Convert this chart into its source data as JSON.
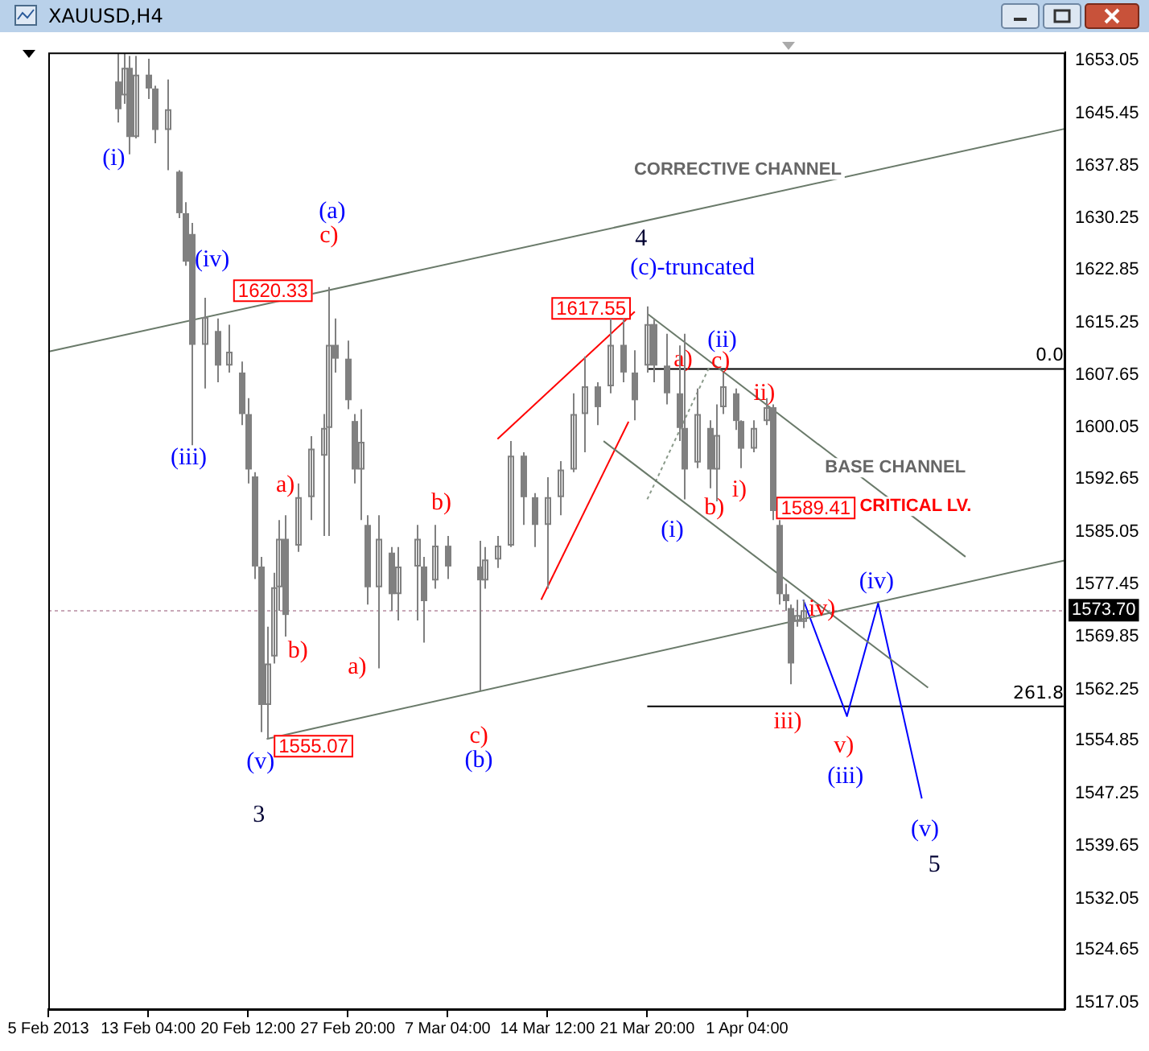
{
  "chart_data": {
    "type": "candlestick",
    "title": "XAUUSD,H4",
    "color": "#808080",
    "categories": [
      "5 Feb 2013",
      null,
      null,
      null,
      null,
      null,
      null,
      null,
      null,
      null,
      null,
      null,
      null,
      null,
      null,
      null,
      "13 Feb 04:00",
      null,
      null,
      null,
      null,
      null,
      null,
      null,
      null,
      null,
      null,
      null,
      null,
      null,
      null,
      null,
      "20 Feb 12:00",
      null,
      null,
      null,
      null,
      null,
      null,
      null,
      null,
      null,
      null,
      null,
      null,
      null,
      null,
      null,
      "27 Feb 20:00",
      null,
      null,
      null,
      null,
      null,
      null,
      null,
      null,
      null,
      null,
      null,
      null,
      null,
      null,
      null,
      "7 Mar 04:00",
      null,
      null,
      null,
      null,
      null,
      null,
      null,
      null,
      null,
      null,
      null,
      null,
      null,
      null,
      null,
      "14 Mar 12:00",
      null,
      null,
      null,
      null,
      null,
      null,
      null,
      null,
      null,
      null,
      null,
      null,
      null,
      null,
      null,
      "21 Mar 20:00",
      null,
      null,
      null,
      null,
      null,
      null,
      null,
      null,
      null,
      null,
      null,
      null,
      null,
      null,
      null,
      "1 Apr 04:00",
      null,
      null,
      null,
      null,
      null,
      null,
      null,
      null,
      null,
      null,
      null,
      null,
      null,
      null,
      null,
      null,
      null,
      null,
      null,
      null,
      null,
      null,
      null,
      null,
      null,
      null,
      null,
      null,
      null,
      null,
      null,
      null,
      null,
      null,
      null,
      null,
      null,
      null,
      null,
      null,
      null,
      null,
      null,
      null,
      null,
      null,
      null,
      null,
      null,
      null,
      null
    ],
    "ohlc": [
      null,
      null,
      null,
      null,
      null,
      null,
      null,
      null,
      null,
      null,
      null,
      [
        1650,
        1654,
        1644.1,
        1646
      ],
      [
        1648,
        1654,
        1646.8,
        1652
      ],
      [
        1652,
        1653.7,
        1639.5,
        1642
      ],
      [
        1642,
        1653.7,
        1641.8,
        1651
      ],
      null,
      [
        1651,
        1653.3,
        1647.5,
        1649
      ],
      [
        1649,
        1649.4,
        1641.1,
        1643
      ],
      null,
      [
        1643,
        1650.3,
        1637.2,
        1646
      ],
      null,
      [
        1637,
        1637.2,
        1630.3,
        1631
      ],
      [
        1631,
        1632.6,
        1623.4,
        1624
      ],
      [
        1628,
        1629.6,
        1597.5,
        1612
      ],
      null,
      [
        1612,
        1618.8,
        1605.7,
        1616
      ],
      null,
      [
        1614,
        1615.8,
        1606.6,
        1609
      ],
      null,
      [
        1609,
        1614.9,
        1608,
        1611
      ],
      null,
      [
        1608,
        1609.6,
        1600.4,
        1602
      ],
      [
        1602,
        1604.3,
        1592,
        1594
      ],
      [
        1593,
        1593.6,
        1578.2,
        1580
      ],
      [
        1580,
        1581.4,
        1556.1,
        1560
      ],
      [
        1560,
        1571.3,
        1555.07,
        1566
      ],
      [
        1567,
        1579.1,
        1566,
        1577
      ],
      [
        1577,
        1586.7,
        1573.6,
        1584
      ],
      [
        1584,
        1587.4,
        1569.9,
        1573
      ],
      null,
      [
        1583,
        1592,
        1582.1,
        1590
      ],
      null,
      [
        1590,
        1598.8,
        1586.7,
        1597
      ],
      null,
      [
        1596,
        1602,
        1584.4,
        1600
      ],
      [
        1600,
        1620.33,
        1584.4,
        1612
      ],
      [
        1612,
        1615.8,
        1608,
        1610
      ],
      null,
      [
        1610,
        1612.6,
        1602.7,
        1604
      ],
      [
        1601,
        1602,
        1592,
        1594
      ],
      [
        1594,
        1602.7,
        1586.7,
        1598
      ],
      [
        1586,
        1587.4,
        1574.5,
        1577
      ],
      null,
      [
        1577,
        1587.4,
        1565.3,
        1584
      ],
      null,
      [
        1582,
        1582.8,
        1573.6,
        1576
      ],
      [
        1576,
        1582.8,
        1572.2,
        1580
      ],
      null,
      null,
      [
        1580,
        1586,
        1572.2,
        1584
      ],
      [
        1580,
        1581.4,
        1569,
        1575
      ],
      null,
      [
        1578,
        1586,
        1576.8,
        1583
      ],
      null,
      [
        1583,
        1584.4,
        1578.2,
        1580
      ],
      null,
      null,
      null,
      null,
      [
        1580,
        1583.7,
        1562.1,
        1578
      ],
      [
        1578,
        1582.8,
        1576.8,
        1581
      ],
      null,
      [
        1581,
        1584.4,
        1579.8,
        1583
      ],
      null,
      [
        1583,
        1598.1,
        1582.8,
        1596
      ],
      null,
      [
        1596,
        1596.5,
        1586,
        1590
      ],
      null,
      [
        1590,
        1590.6,
        1582.8,
        1586
      ],
      null,
      [
        1586,
        1592.9,
        1576.8,
        1590
      ],
      null,
      [
        1590,
        1595.2,
        1587.4,
        1594
      ],
      null,
      [
        1594,
        1605,
        1593.6,
        1602
      ],
      null,
      [
        1602,
        1610.3,
        1596.5,
        1606
      ],
      null,
      [
        1606,
        1606.6,
        1600.4,
        1603
      ],
      null,
      [
        1606,
        1615.8,
        1605,
        1612
      ],
      null,
      [
        1612,
        1615.8,
        1606.6,
        1608
      ],
      null,
      [
        1608,
        1611.2,
        1601.1,
        1604
      ],
      null,
      [
        1609,
        1617.55,
        1608,
        1615
      ],
      [
        1615,
        1615.8,
        1606.6,
        1609
      ],
      null,
      [
        1609,
        1613.6,
        1603.4,
        1605
      ],
      null,
      [
        1605,
        1611.9,
        1598.1,
        1600
      ],
      [
        1600,
        1613.6,
        1589.7,
        1594
      ],
      null,
      [
        1595,
        1605.7,
        1594.2,
        1602
      ],
      null,
      [
        1600,
        1601.1,
        1591.3,
        1594
      ],
      [
        1594,
        1603.4,
        1589.41,
        1599
      ],
      [
        1603,
        1608,
        1602,
        1606
      ],
      null,
      [
        1605,
        1605.7,
        1599.7,
        1601
      ],
      [
        1601,
        1601.1,
        1594.2,
        1597
      ],
      null,
      [
        1597,
        1601.1,
        1596.5,
        1600
      ],
      null,
      [
        1601,
        1604.3,
        1600.4,
        1603
      ],
      [
        1603,
        1603.4,
        1586.7,
        1588
      ],
      [
        1586,
        1586.7,
        1574.5,
        1576
      ],
      [
        1576,
        1577.5,
        1573.6,
        1575
      ],
      [
        1574,
        1574.5,
        1563,
        1566
      ],
      [
        1572,
        1575.2,
        1571.3,
        1573
      ],
      [
        1572,
        1575.2,
        1571.1,
        1573.7
      ],
      null,
      null,
      null,
      null,
      null,
      null,
      null,
      null,
      null,
      null,
      null,
      null,
      null,
      null,
      null,
      null,
      null,
      null,
      null,
      null,
      null,
      null,
      null,
      null,
      null,
      null,
      null,
      null,
      null,
      null,
      null,
      null,
      null,
      null,
      null,
      null,
      null,
      null,
      null,
      null,
      null,
      null
    ],
    "ylim": [
      1516.1,
      1654.2
    ],
    "yticks": [
      1517.05,
      1524.65,
      1532.05,
      1539.65,
      1547.25,
      1554.85,
      1562.25,
      1569.85,
      1577.45,
      1585.05,
      1592.65,
      1600.05,
      1607.65,
      1615.25,
      1622.85,
      1630.25,
      1637.85,
      1645.45,
      1653.05
    ],
    "series": [
      {
        "type": "line",
        "color": "#6a7a6a",
        "values": [
          1611.0,
          null,
          null,
          null,
          null,
          null,
          null,
          null,
          null,
          null,
          null,
          null,
          null,
          null,
          null,
          null,
          null,
          null,
          null,
          null,
          null,
          null,
          null,
          null,
          null,
          null,
          null,
          null,
          null,
          null,
          null,
          null,
          null,
          null,
          null,
          null,
          null,
          null,
          null,
          null,
          null,
          null,
          null,
          null,
          null,
          null,
          null,
          null,
          null,
          null,
          null,
          null,
          null,
          null,
          null,
          null,
          null,
          null,
          null,
          null,
          null,
          null,
          null,
          null,
          null,
          null,
          null,
          null,
          null,
          null,
          null,
          null,
          null,
          null,
          null,
          null,
          null,
          null,
          null,
          null,
          null,
          null,
          null,
          null,
          null,
          null,
          null,
          null,
          null,
          null,
          null,
          null,
          null,
          null,
          null,
          null,
          null,
          null,
          null,
          null,
          null,
          null,
          null,
          null,
          null,
          null,
          null,
          null,
          null,
          null,
          null,
          null,
          null,
          null,
          null,
          null,
          null,
          null,
          null,
          null,
          null,
          null,
          null,
          null,
          null,
          null,
          null,
          null,
          null,
          null,
          null,
          null,
          null,
          null,
          null,
          null,
          null,
          null,
          null,
          null,
          null,
          null,
          null,
          null,
          null,
          null,
          null,
          null,
          null,
          null,
          null,
          null,
          null,
          null,
          null,
          null,
          null,
          null,
          null,
          null,
          null,
          null,
          null,
          1643.2
        ]
      },
      {
        "type": "line",
        "color": "#6a7a6a",
        "values": [
          null,
          null,
          null,
          null,
          null,
          null,
          null,
          null,
          null,
          null,
          null,
          null,
          null,
          null,
          null,
          null,
          null,
          null,
          null,
          null,
          null,
          null,
          null,
          null,
          null,
          null,
          null,
          null,
          null,
          null,
          null,
          null,
          null,
          null,
          null,
          1555.1,
          null,
          null,
          null,
          null,
          null,
          null,
          null,
          null,
          null,
          null,
          null,
          null,
          null,
          null,
          null,
          null,
          null,
          null,
          null,
          null,
          null,
          null,
          null,
          null,
          null,
          null,
          null,
          null,
          null,
          null,
          null,
          null,
          null,
          null,
          null,
          null,
          null,
          null,
          null,
          null,
          null,
          null,
          null,
          null,
          null,
          null,
          null,
          null,
          null,
          null,
          null,
          null,
          null,
          null,
          null,
          null,
          null,
          null,
          null,
          null,
          null,
          null,
          null,
          null,
          null,
          null,
          null,
          null,
          null,
          null,
          null,
          null,
          null,
          null,
          null,
          null,
          null,
          null,
          null,
          null,
          null,
          null,
          null,
          null,
          null,
          null,
          null,
          null,
          null,
          null,
          null,
          null,
          null,
          null,
          null,
          null,
          null,
          null,
          null,
          null,
          null,
          null,
          null,
          null,
          null,
          null,
          null,
          null,
          null,
          null,
          null,
          null,
          null,
          null,
          null,
          null,
          null,
          null,
          null,
          null,
          null,
          null,
          null,
          null,
          null,
          null,
          null,
          1580.9
        ]
      },
      {
        "type": "line",
        "color": "#6a7a6a",
        "values": [
          null,
          null,
          null,
          null,
          null,
          null,
          null,
          null,
          null,
          null,
          null,
          null,
          null,
          null,
          null,
          null,
          null,
          null,
          null,
          null,
          null,
          null,
          null,
          null,
          null,
          null,
          null,
          null,
          null,
          null,
          null,
          null,
          null,
          null,
          null,
          null,
          null,
          null,
          null,
          null,
          null,
          null,
          null,
          null,
          null,
          null,
          null,
          null,
          null,
          null,
          null,
          null,
          null,
          null,
          null,
          null,
          null,
          null,
          null,
          null,
          null,
          null,
          null,
          null,
          null,
          null,
          null,
          null,
          null,
          null,
          null,
          null,
          null,
          null,
          null,
          null,
          null,
          null,
          null,
          null,
          null,
          null,
          null,
          null,
          null,
          null,
          null,
          null,
          null,
          null,
          null,
          null,
          null,
          null,
          null,
          null,
          1616.5,
          null,
          null,
          null,
          null,
          null,
          null,
          null,
          null,
          null,
          null,
          null,
          null,
          null,
          null,
          null,
          null,
          null,
          null,
          null,
          null,
          null,
          null,
          null,
          null,
          null,
          null,
          null,
          null,
          null,
          null,
          null,
          null,
          null,
          null,
          null,
          null,
          null,
          null,
          null,
          null,
          null,
          null,
          null,
          null,
          null,
          null,
          null,
          null,
          null,
          null,
          1581.4,
          null,
          null,
          null,
          null,
          null,
          null,
          null,
          null,
          null,
          null,
          null,
          null,
          null,
          null,
          null,
          null
        ]
      },
      {
        "type": "line",
        "color": "#6a7a6a",
        "values": [
          null,
          null,
          null,
          null,
          null,
          null,
          null,
          null,
          null,
          null,
          null,
          null,
          null,
          null,
          null,
          null,
          null,
          null,
          null,
          null,
          null,
          null,
          null,
          null,
          null,
          null,
          null,
          null,
          null,
          null,
          null,
          null,
          null,
          null,
          null,
          null,
          null,
          null,
          null,
          null,
          null,
          null,
          null,
          null,
          null,
          null,
          null,
          null,
          null,
          null,
          null,
          null,
          null,
          null,
          null,
          null,
          null,
          null,
          null,
          null,
          null,
          null,
          null,
          null,
          null,
          null,
          null,
          null,
          null,
          null,
          null,
          null,
          null,
          null,
          null,
          null,
          null,
          null,
          null,
          null,
          null,
          null,
          null,
          null,
          null,
          null,
          null,
          null,
          null,
          1598.1,
          null,
          null,
          null,
          null,
          null,
          null,
          null,
          null,
          null,
          null,
          null,
          null,
          null,
          null,
          null,
          null,
          null,
          null,
          null,
          null,
          null,
          null,
          null,
          null,
          null,
          null,
          null,
          null,
          null,
          null,
          null,
          null,
          null,
          null,
          null,
          null,
          null,
          null,
          null,
          null,
          null,
          null,
          null,
          null,
          null,
          null,
          null,
          null,
          null,
          null,
          null,
          1562.5,
          null,
          null,
          null,
          null,
          null,
          null,
          null,
          null,
          null,
          null,
          null,
          null,
          null,
          null,
          null,
          null,
          null,
          null,
          null,
          null,
          null,
          null
        ]
      },
      {
        "type": "line",
        "color": "#8a9a8a",
        "line_style": "dotted",
        "values": [
          null,
          null,
          null,
          null,
          null,
          null,
          null,
          null,
          null,
          null,
          null,
          null,
          null,
          null,
          null,
          null,
          null,
          null,
          null,
          null,
          null,
          null,
          null,
          null,
          null,
          null,
          null,
          null,
          null,
          null,
          null,
          null,
          null,
          null,
          null,
          null,
          null,
          null,
          null,
          null,
          null,
          null,
          null,
          null,
          null,
          null,
          null,
          null,
          null,
          null,
          null,
          null,
          null,
          null,
          null,
          null,
          null,
          null,
          null,
          null,
          null,
          null,
          null,
          null,
          null,
          null,
          null,
          null,
          null,
          null,
          null,
          null,
          null,
          null,
          null,
          null,
          null,
          null,
          null,
          null,
          null,
          null,
          null,
          null,
          null,
          null,
          null,
          null,
          null,
          null,
          null,
          null,
          null,
          null,
          null,
          null,
          1589.7,
          null,
          null,
          null,
          null,
          null,
          null,
          null,
          null,
          null,
          1608.9,
          null,
          null,
          null,
          null,
          null,
          null,
          null,
          null,
          null,
          null,
          null,
          null,
          null,
          null,
          null,
          null,
          null,
          null,
          null,
          null,
          null,
          null,
          null,
          null,
          null,
          null,
          null,
          null,
          null,
          null,
          null,
          null,
          null,
          null,
          null,
          null,
          null,
          null,
          null,
          null,
          null,
          null,
          null,
          null,
          null,
          null,
          null,
          null,
          null,
          null,
          null,
          null,
          null,
          null,
          null,
          null,
          null
        ]
      },
      {
        "type": "line",
        "color": "#ff0000",
        "values": [
          null,
          null,
          null,
          null,
          null,
          null,
          null,
          null,
          null,
          null,
          null,
          null,
          null,
          null,
          null,
          null,
          null,
          null,
          null,
          null,
          null,
          null,
          null,
          null,
          null,
          null,
          null,
          null,
          null,
          null,
          null,
          null,
          null,
          null,
          null,
          null,
          null,
          null,
          null,
          null,
          null,
          null,
          null,
          null,
          null,
          null,
          null,
          null,
          null,
          null,
          null,
          null,
          null,
          null,
          null,
          null,
          null,
          null,
          null,
          null,
          null,
          null,
          null,
          null,
          null,
          null,
          null,
          null,
          null,
          null,
          null,
          null,
          1598.4,
          null,
          null,
          null,
          null,
          null,
          null,
          null,
          null,
          null,
          null,
          null,
          null,
          null,
          null,
          null,
          null,
          null,
          null,
          null,
          null,
          null,
          1616.8,
          null,
          null,
          null,
          null,
          null,
          null,
          null,
          null,
          null,
          null,
          null,
          null,
          null,
          null,
          null,
          null,
          null,
          null,
          null,
          null,
          null,
          null,
          null,
          null,
          null,
          null,
          null,
          null,
          null,
          null,
          null,
          null,
          null,
          null,
          null,
          null,
          null,
          null,
          null,
          null,
          null,
          null,
          null,
          null,
          null,
          null,
          null,
          null,
          null,
          null,
          null,
          null,
          null,
          null,
          null,
          null,
          null,
          null,
          null,
          null,
          null,
          null,
          null,
          null,
          null,
          null,
          null,
          null,
          null
        ]
      },
      {
        "type": "line",
        "color": "#ff0000",
        "values": [
          null,
          null,
          null,
          null,
          null,
          null,
          null,
          null,
          null,
          null,
          null,
          null,
          null,
          null,
          null,
          null,
          null,
          null,
          null,
          null,
          null,
          null,
          null,
          null,
          null,
          null,
          null,
          null,
          null,
          null,
          null,
          null,
          null,
          null,
          null,
          null,
          null,
          null,
          null,
          null,
          null,
          null,
          null,
          null,
          null,
          null,
          null,
          null,
          null,
          null,
          null,
          null,
          null,
          null,
          null,
          null,
          null,
          null,
          null,
          null,
          null,
          null,
          null,
          null,
          null,
          null,
          null,
          null,
          null,
          null,
          null,
          null,
          null,
          null,
          null,
          null,
          null,
          null,
          null,
          1575.2,
          null,
          null,
          null,
          null,
          null,
          null,
          null,
          null,
          null,
          null,
          null,
          null,
          null,
          1600.9,
          null,
          null,
          null,
          null,
          null,
          null,
          null,
          null,
          null,
          null,
          null,
          null,
          null,
          null,
          null,
          null,
          null,
          null,
          null,
          null,
          null,
          null,
          null,
          null,
          null,
          null,
          null,
          null,
          null,
          null,
          null,
          null,
          null,
          null,
          null,
          null,
          null,
          null,
          null,
          null,
          null,
          null,
          null,
          null,
          null,
          null,
          null,
          null,
          null,
          null,
          null,
          null,
          null,
          null,
          null,
          null,
          null,
          null,
          null,
          null,
          null,
          null,
          null,
          null,
          null,
          null,
          null,
          null,
          null,
          null
        ]
      },
      {
        "type": "line",
        "color": "#0000ff",
        "values": [
          null,
          null,
          null,
          null,
          null,
          null,
          null,
          null,
          null,
          null,
          null,
          null,
          null,
          null,
          null,
          null,
          null,
          null,
          null,
          null,
          null,
          null,
          null,
          null,
          null,
          null,
          null,
          null,
          null,
          null,
          null,
          null,
          null,
          null,
          null,
          null,
          null,
          null,
          null,
          null,
          null,
          null,
          null,
          null,
          null,
          null,
          null,
          null,
          null,
          null,
          null,
          null,
          null,
          null,
          null,
          null,
          null,
          null,
          null,
          null,
          null,
          null,
          null,
          null,
          null,
          null,
          null,
          null,
          null,
          null,
          null,
          null,
          null,
          null,
          null,
          null,
          null,
          null,
          null,
          null,
          null,
          null,
          null,
          null,
          null,
          null,
          null,
          null,
          null,
          null,
          null,
          null,
          null,
          null,
          null,
          null,
          null,
          null,
          null,
          null,
          null,
          null,
          null,
          null,
          null,
          null,
          null,
          null,
          null,
          null,
          null,
          null,
          null,
          null,
          null,
          null,
          null,
          null,
          null,
          null,
          null,
          1575.2,
          null,
          null,
          null,
          null,
          null,
          null,
          1558.4,
          null,
          null,
          null,
          null,
          1574.7,
          null,
          null,
          null,
          null,
          null,
          null,
          1546.5,
          null,
          null,
          null,
          null,
          null,
          null,
          null,
          null,
          null,
          null,
          null,
          null,
          null,
          null,
          null,
          null,
          null,
          null,
          null,
          null,
          null,
          null,
          null
        ]
      },
      {
        "type": "line",
        "color": "#000000",
        "values": [
          null,
          null,
          null,
          null,
          null,
          null,
          null,
          null,
          null,
          null,
          null,
          null,
          null,
          null,
          null,
          null,
          null,
          null,
          null,
          null,
          null,
          null,
          null,
          null,
          null,
          null,
          null,
          null,
          null,
          null,
          null,
          null,
          null,
          null,
          null,
          null,
          null,
          null,
          null,
          null,
          null,
          null,
          null,
          null,
          null,
          null,
          null,
          null,
          null,
          null,
          null,
          null,
          null,
          null,
          null,
          null,
          null,
          null,
          null,
          null,
          null,
          null,
          null,
          null,
          null,
          null,
          null,
          null,
          null,
          null,
          null,
          null,
          null,
          null,
          null,
          null,
          null,
          null,
          null,
          null,
          null,
          null,
          null,
          null,
          null,
          null,
          null,
          null,
          null,
          null,
          null,
          null,
          null,
          null,
          null,
          null,
          1608.5,
          null,
          null,
          null,
          null,
          null,
          null,
          null,
          null,
          null,
          null,
          null,
          null,
          null,
          null,
          null,
          null,
          null,
          null,
          null,
          null,
          null,
          null,
          null,
          null,
          null,
          null,
          null,
          null,
          null,
          null,
          null,
          null,
          null,
          null,
          null,
          null,
          null,
          null,
          null,
          null,
          null,
          null,
          null,
          null,
          null,
          null,
          null,
          null,
          null,
          null,
          null,
          null,
          null,
          null,
          null,
          null,
          null,
          null,
          null,
          null,
          null,
          null,
          null,
          null,
          null,
          null,
          1608.5
        ]
      },
      {
        "type": "line",
        "color": "#000000",
        "values": [
          null,
          null,
          null,
          null,
          null,
          null,
          null,
          null,
          null,
          null,
          null,
          null,
          null,
          null,
          null,
          null,
          null,
          null,
          null,
          null,
          null,
          null,
          null,
          null,
          null,
          null,
          null,
          null,
          null,
          null,
          null,
          null,
          null,
          null,
          null,
          null,
          null,
          null,
          null,
          null,
          null,
          null,
          null,
          null,
          null,
          null,
          null,
          null,
          null,
          null,
          null,
          null,
          null,
          null,
          null,
          null,
          null,
          null,
          null,
          null,
          null,
          null,
          null,
          null,
          null,
          null,
          null,
          null,
          null,
          null,
          null,
          null,
          null,
          null,
          null,
          null,
          null,
          null,
          null,
          null,
          null,
          null,
          null,
          null,
          null,
          null,
          null,
          null,
          null,
          null,
          null,
          null,
          null,
          null,
          null,
          null,
          1559.8,
          null,
          null,
          null,
          null,
          null,
          null,
          null,
          null,
          null,
          null,
          null,
          null,
          null,
          null,
          null,
          null,
          null,
          null,
          null,
          null,
          null,
          null,
          null,
          null,
          null,
          null,
          null,
          null,
          null,
          null,
          null,
          null,
          null,
          null,
          null,
          null,
          null,
          null,
          null,
          null,
          null,
          null,
          null,
          null,
          null,
          null,
          null,
          null,
          null,
          null,
          null,
          null,
          null,
          null,
          null,
          null,
          null,
          null,
          null,
          null,
          null,
          null,
          null,
          null,
          null,
          null,
          1559.8
        ]
      }
    ],
    "ref_lines": [
      {
        "axis": "y",
        "value": 1573.7,
        "label": "1573.70",
        "color": "#c8a8b8",
        "line_style": "dotted"
      }
    ],
    "annotations": [
      "(i)",
      "(iii)",
      "(iv)",
      "(a)",
      "c)",
      "1620.33",
      "a)",
      "b)",
      "a)",
      "(v)",
      "1555.07",
      "3",
      "b)",
      "c)",
      "(b)",
      "4",
      "(c)-truncated",
      "1617.55",
      "CORRECTIVE CHANNEL",
      "(ii)",
      "a)",
      "c)",
      "ii)",
      "(i)",
      "b)",
      "i)",
      "1589.41",
      "BASE CHANNEL",
      "CRITICAL LV.",
      "(iv)",
      "iv)",
      "iii)",
      "v)",
      "(iii)",
      "(v)",
      "5",
      {
        "text": "0.0",
        "y": 1608.5
      },
      {
        "text": "261.8",
        "y": 1559.8
      }
    ],
    "grid": false,
    "legend": false
  }
}
